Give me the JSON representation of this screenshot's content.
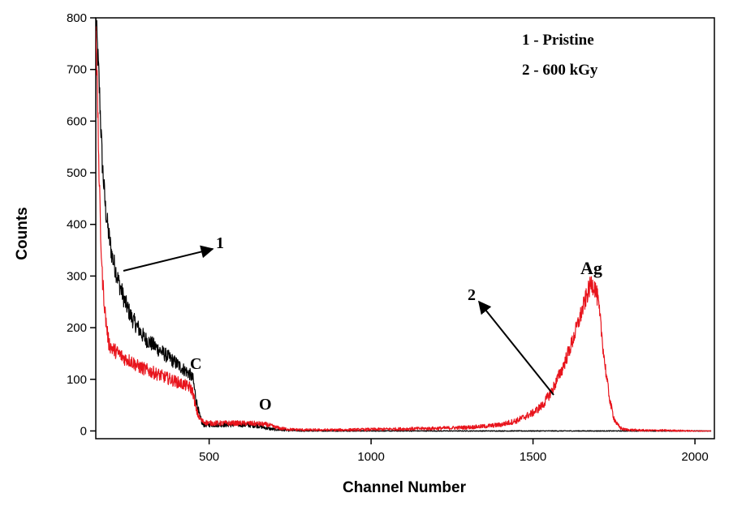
{
  "chart_data": {
    "type": "line",
    "xlabel": "Channel Number",
    "ylabel": "Counts",
    "xlim": [
      150,
      2060
    ],
    "ylim": [
      -15,
      800
    ],
    "xticks": [
      500,
      1000,
      1500,
      2000
    ],
    "yticks": [
      0,
      100,
      200,
      300,
      400,
      500,
      600,
      700,
      800
    ],
    "grid": false,
    "series": [
      {
        "name": "1",
        "color": "#000000",
        "x": [
          150,
          160,
          170,
          180,
          190,
          200,
          220,
          240,
          260,
          280,
          300,
          320,
          340,
          360,
          380,
          400,
          420,
          440,
          450,
          460,
          470,
          480,
          500,
          550,
          600,
          650,
          680,
          700,
          720,
          750,
          800,
          1000,
          1500,
          2050
        ],
        "y": [
          800,
          680,
          520,
          430,
          380,
          340,
          290,
          250,
          220,
          200,
          180,
          170,
          160,
          150,
          140,
          130,
          120,
          110,
          100,
          60,
          30,
          12,
          12,
          12,
          12,
          10,
          5,
          3,
          2,
          1,
          0,
          0,
          0,
          0
        ]
      },
      {
        "name": "2",
        "color": "#e8141c",
        "x": [
          150,
          155,
          160,
          165,
          170,
          180,
          190,
          200,
          220,
          240,
          260,
          280,
          300,
          320,
          340,
          360,
          380,
          400,
          420,
          440,
          450,
          460,
          470,
          480,
          500,
          550,
          600,
          650,
          680,
          700,
          720,
          750,
          800,
          900,
          1000,
          1100,
          1200,
          1300,
          1350,
          1400,
          1450,
          1500,
          1530,
          1560,
          1590,
          1620,
          1640,
          1660,
          1670,
          1680,
          1690,
          1700,
          1710,
          1720,
          1730,
          1740,
          1750,
          1760,
          1770,
          1780,
          1800,
          1850,
          1900,
          2000,
          2050
        ],
        "y": [
          800,
          650,
          500,
          380,
          300,
          220,
          170,
          160,
          150,
          140,
          135,
          125,
          120,
          115,
          110,
          105,
          100,
          95,
          90,
          85,
          75,
          40,
          25,
          18,
          15,
          15,
          15,
          14,
          12,
          8,
          5,
          3,
          2,
          2,
          3,
          4,
          5,
          7,
          9,
          12,
          20,
          35,
          50,
          80,
          120,
          170,
          210,
          250,
          270,
          285,
          280,
          255,
          200,
          140,
          90,
          50,
          25,
          12,
          6,
          3,
          2,
          1,
          1,
          0,
          0
        ]
      }
    ],
    "legend": {
      "position": "top-right",
      "entries": [
        "1 - Pristine",
        "2 - 600 kGy"
      ]
    },
    "annotations": [
      {
        "text": "1",
        "x": 1040,
        "y": 357
      },
      {
        "text": "2",
        "x": 1530,
        "y": 253
      },
      {
        "text": "C",
        "x": 440,
        "y": 122
      },
      {
        "text": "O",
        "x": 660,
        "y": 30
      },
      {
        "text": "Ag",
        "x": 1670,
        "y": 310
      }
    ]
  }
}
